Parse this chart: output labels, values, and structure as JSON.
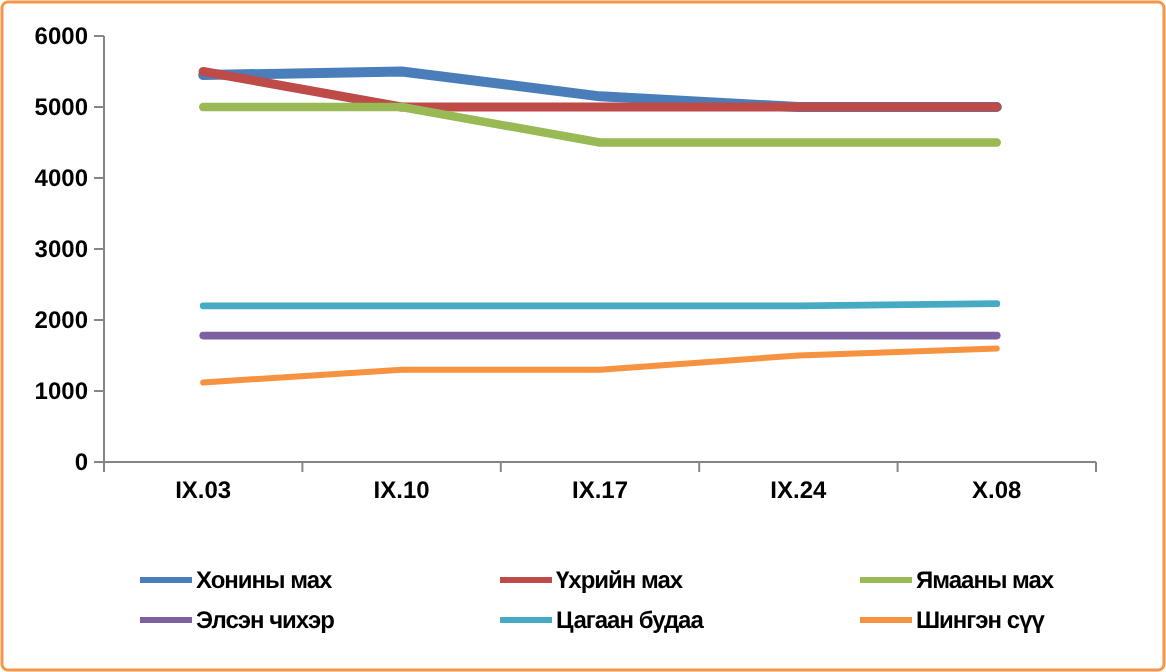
{
  "chart_data": {
    "type": "line",
    "categories": [
      "IX.03",
      "IX.10",
      "IX.17",
      "IX.24",
      "X.08"
    ],
    "ylim": [
      0,
      6000
    ],
    "yticks": [
      0,
      1000,
      2000,
      3000,
      4000,
      5000,
      6000
    ],
    "grid": false,
    "legend": "bottom",
    "marker": "none",
    "line_style": "solid",
    "series": [
      {
        "name": "Хонины мах",
        "color": "#4a7ebb",
        "values": [
          5450,
          5500,
          5150,
          5000,
          5000
        ]
      },
      {
        "name": "Үхрийн мах",
        "color": "#be4b48",
        "values": [
          5500,
          5000,
          5000,
          5000,
          5000
        ]
      },
      {
        "name": "Ямааны мах",
        "color": "#98b954",
        "values": [
          5000,
          5000,
          4500,
          4500,
          4500
        ]
      },
      {
        "name": "Элсэн чихэр",
        "color": "#7d60a0",
        "values": [
          1780,
          1780,
          1780,
          1780,
          1780
        ]
      },
      {
        "name": "Цагаан будаа",
        "color": "#46aac5",
        "values": [
          2200,
          2200,
          2200,
          2200,
          2230
        ]
      },
      {
        "name": "Шингэн сүү",
        "color": "#f69240",
        "values": [
          1120,
          1300,
          1300,
          1500,
          1600
        ]
      }
    ]
  }
}
